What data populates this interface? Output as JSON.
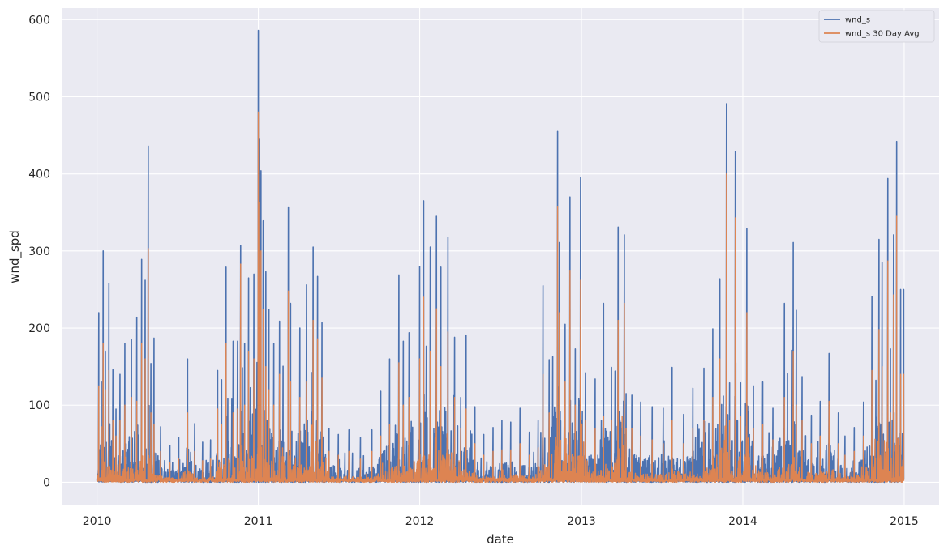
{
  "chart_data": {
    "type": "line",
    "title": "",
    "xlabel": "date",
    "ylabel": "wnd_spd",
    "x_ticks": [
      "2010",
      "2011",
      "2012",
      "2013",
      "2014",
      "2015"
    ],
    "y_ticks": [
      "0",
      "100",
      "200",
      "300",
      "400",
      "500",
      "600"
    ],
    "xlim": [
      "2009-10-13",
      "2015-03-21"
    ],
    "ylim": [
      -30,
      615
    ],
    "grid": true,
    "legend_position": "top-right",
    "style": {
      "background": "#eaeaf2",
      "gridcolor": "#ffffff"
    },
    "series": [
      {
        "name": "wnd_s",
        "color": "#4c72b0",
        "x": [
          "2010-01-01",
          "2010-01-05",
          "2010-01-11",
          "2010-01-15",
          "2010-01-20",
          "2010-01-28",
          "2010-02-06",
          "2010-02-13",
          "2010-02-22",
          "2010-03-05",
          "2010-03-20",
          "2010-04-01",
          "2010-04-12",
          "2010-04-20",
          "2010-04-27",
          "2010-05-03",
          "2010-05-10",
          "2010-05-25",
          "2010-06-15",
          "2010-07-05",
          "2010-07-25",
          "2010-08-10",
          "2010-08-28",
          "2010-09-15",
          "2010-10-01",
          "2010-10-10",
          "2010-10-20",
          "2010-11-05",
          "2010-11-15",
          "2010-11-22",
          "2010-12-01",
          "2010-12-10",
          "2010-12-22",
          "2011-01-01",
          "2011-01-04",
          "2011-01-07",
          "2011-01-12",
          "2011-01-18",
          "2011-01-25",
          "2011-02-05",
          "2011-02-18",
          "2011-03-10",
          "2011-03-15",
          "2011-04-05",
          "2011-04-20",
          "2011-05-05",
          "2011-05-15",
          "2011-05-25",
          "2011-06-10",
          "2011-07-01",
          "2011-07-25",
          "2011-08-20",
          "2011-09-15",
          "2011-10-05",
          "2011-10-25",
          "2011-11-15",
          "2011-11-25",
          "2011-12-08",
          "2012-01-01",
          "2012-01-10",
          "2012-01-25",
          "2012-02-08",
          "2012-02-18",
          "2012-03-05",
          "2012-03-20",
          "2012-04-03",
          "2012-04-15",
          "2012-05-05",
          "2012-05-25",
          "2012-06-15",
          "2012-07-05",
          "2012-07-25",
          "2012-08-15",
          "2012-09-05",
          "2012-09-25",
          "2012-10-06",
          "2012-10-20",
          "2012-11-08",
          "2012-11-12",
          "2012-11-25",
          "2012-12-06",
          "2012-12-18",
          "2012-12-30",
          "2013-01-10",
          "2013-02-01",
          "2013-02-20",
          "2013-03-10",
          "2013-03-25",
          "2013-04-08",
          "2013-04-12",
          "2013-04-25",
          "2013-05-15",
          "2013-06-10",
          "2013-07-05",
          "2013-07-25",
          "2013-08-20",
          "2013-09-10",
          "2013-10-05",
          "2013-10-25",
          "2013-11-10",
          "2013-11-25",
          "2013-12-02",
          "2013-12-15",
          "2013-12-27",
          "2014-01-10",
          "2014-01-25",
          "2014-02-15",
          "2014-03-10",
          "2014-04-05",
          "2014-04-25",
          "2014-05-02",
          "2014-05-15",
          "2014-06-05",
          "2014-06-25",
          "2014-07-15",
          "2014-08-05",
          "2014-08-20",
          "2014-09-10",
          "2014-10-01",
          "2014-10-20",
          "2014-11-05",
          "2014-11-12",
          "2014-11-25",
          "2014-12-01",
          "2014-12-08",
          "2014-12-15",
          "2014-12-24",
          "2014-12-31"
        ],
        "y": [
          2,
          220,
          130,
          300,
          170,
          258,
          146,
          95,
          140,
          180,
          185,
          214,
          289,
          262,
          436,
          154,
          187,
          72,
          48,
          58,
          160,
          76,
          52,
          55,
          145,
          133,
          279,
          183,
          183,
          307,
          180,
          265,
          270,
          586,
          446,
          404,
          339,
          273,
          224,
          180,
          209,
          357,
          232,
          200,
          256,
          305,
          267,
          207,
          70,
          62,
          68,
          58,
          68,
          118,
          160,
          269,
          183,
          194,
          280,
          365,
          305,
          345,
          279,
          318,
          188,
          110,
          191,
          98,
          62,
          71,
          80,
          78,
          96,
          65,
          80,
          255,
          159,
          455,
          311,
          205,
          370,
          173,
          395,
          142,
          134,
          232,
          149,
          331,
          321,
          115,
          113,
          104,
          98,
          96,
          149,
          88,
          122,
          148,
          199,
          264,
          491,
          129,
          429,
          129,
          329,
          125,
          130,
          96,
          232,
          311,
          223,
          137,
          87,
          105,
          167,
          90,
          60,
          71,
          104,
          241,
          315,
          285,
          394,
          173,
          321,
          442,
          250,
          250
        ]
      },
      {
        "name": "wnd_s 30 Day Avg",
        "color": "#dd8452",
        "x": [
          "2010-01-01",
          "2010-01-05",
          "2010-01-11",
          "2010-01-15",
          "2010-01-20",
          "2010-01-28",
          "2010-02-06",
          "2010-02-13",
          "2010-02-22",
          "2010-03-05",
          "2010-03-20",
          "2010-04-01",
          "2010-04-12",
          "2010-04-20",
          "2010-04-27",
          "2010-05-03",
          "2010-05-10",
          "2010-05-25",
          "2010-06-15",
          "2010-07-05",
          "2010-07-25",
          "2010-08-10",
          "2010-08-28",
          "2010-09-15",
          "2010-10-01",
          "2010-10-10",
          "2010-10-20",
          "2010-11-05",
          "2010-11-15",
          "2010-11-22",
          "2010-12-01",
          "2010-12-10",
          "2010-12-22",
          "2011-01-01",
          "2011-01-04",
          "2011-01-07",
          "2011-01-12",
          "2011-01-18",
          "2011-01-25",
          "2011-02-05",
          "2011-02-18",
          "2011-03-10",
          "2011-03-15",
          "2011-04-05",
          "2011-04-20",
          "2011-05-05",
          "2011-05-15",
          "2011-05-25",
          "2011-06-10",
          "2011-07-01",
          "2011-07-25",
          "2011-08-20",
          "2011-09-15",
          "2011-10-05",
          "2011-10-25",
          "2011-11-15",
          "2011-11-25",
          "2011-12-08",
          "2012-01-01",
          "2012-01-10",
          "2012-01-25",
          "2012-02-08",
          "2012-02-18",
          "2012-03-05",
          "2012-03-20",
          "2012-04-03",
          "2012-04-15",
          "2012-05-05",
          "2012-05-25",
          "2012-06-15",
          "2012-07-05",
          "2012-07-25",
          "2012-08-15",
          "2012-09-05",
          "2012-09-25",
          "2012-10-06",
          "2012-10-20",
          "2012-11-08",
          "2012-11-12",
          "2012-11-25",
          "2012-12-06",
          "2012-12-18",
          "2012-12-30",
          "2013-01-10",
          "2013-02-01",
          "2013-02-20",
          "2013-03-10",
          "2013-03-25",
          "2013-04-08",
          "2013-04-12",
          "2013-04-25",
          "2013-05-15",
          "2013-06-10",
          "2013-07-05",
          "2013-07-25",
          "2013-08-20",
          "2013-09-10",
          "2013-10-05",
          "2013-10-25",
          "2013-11-10",
          "2013-11-25",
          "2013-12-02",
          "2013-12-15",
          "2013-12-27",
          "2014-01-10",
          "2014-01-25",
          "2014-02-15",
          "2014-03-10",
          "2014-04-05",
          "2014-04-25",
          "2014-05-02",
          "2014-05-15",
          "2014-06-05",
          "2014-06-25",
          "2014-07-15",
          "2014-08-05",
          "2014-08-20",
          "2014-09-10",
          "2014-10-01",
          "2014-10-20",
          "2014-11-05",
          "2014-11-12",
          "2014-11-25",
          "2014-12-01",
          "2014-12-08",
          "2014-12-15",
          "2014-12-24",
          "2014-12-31"
        ],
        "y": [
          2,
          125,
          72,
          180,
          120,
          145,
          80,
          60,
          80,
          100,
          110,
          105,
          180,
          160,
          303,
          90,
          75,
          40,
          25,
          30,
          90,
          40,
          28,
          30,
          95,
          75,
          180,
          90,
          95,
          283,
          100,
          170,
          160,
          480,
          363,
          300,
          224,
          150,
          120,
          100,
          140,
          248,
          130,
          110,
          130,
          210,
          186,
          135,
          40,
          35,
          40,
          30,
          40,
          60,
          75,
          155,
          100,
          110,
          160,
          240,
          170,
          225,
          150,
          195,
          110,
          70,
          95,
          50,
          35,
          40,
          42,
          42,
          50,
          35,
          45,
          140,
          90,
          358,
          220,
          130,
          275,
          100,
          262,
          80,
          70,
          85,
          80,
          210,
          232,
          70,
          70,
          60,
          55,
          50,
          80,
          50,
          70,
          80,
          110,
          160,
          400,
          80,
          343,
          85,
          220,
          70,
          75,
          55,
          110,
          170,
          100,
          80,
          50,
          60,
          105,
          50,
          35,
          40,
          60,
          145,
          198,
          150,
          287,
          90,
          243,
          345,
          140,
          140
        ]
      }
    ]
  }
}
